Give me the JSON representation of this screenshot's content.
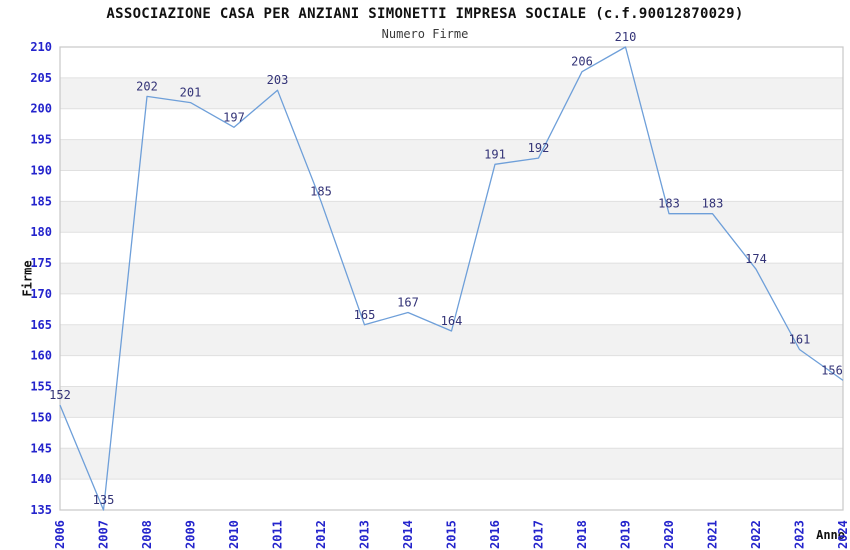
{
  "header": {
    "title": "ASSOCIAZIONE CASA PER ANZIANI SIMONETTI IMPRESA SOCIALE (c.f.90012870029)",
    "subtitle": "Numero Firme"
  },
  "chart_data": {
    "type": "line",
    "title": "ASSOCIAZIONE CASA PER ANZIANI SIMONETTI IMPRESA SOCIALE (c.f.90012870029)",
    "subtitle": "Numero Firme",
    "xlabel": "Anno",
    "ylabel": "Firme",
    "x": [
      2006,
      2007,
      2008,
      2009,
      2010,
      2011,
      2012,
      2013,
      2014,
      2015,
      2016,
      2017,
      2018,
      2019,
      2020,
      2021,
      2022,
      2023,
      2024
    ],
    "series": [
      {
        "name": "Numero Firme",
        "values": [
          152,
          135,
          202,
          201,
          197,
          203,
          185,
          165,
          167,
          164,
          191,
          192,
          206,
          210,
          183,
          183,
          174,
          161,
          156
        ]
      }
    ],
    "ylim": [
      135,
      210
    ],
    "ytick_step": 5,
    "yticks": [
      135,
      140,
      145,
      150,
      155,
      160,
      165,
      170,
      175,
      180,
      185,
      190,
      195,
      200,
      205,
      210
    ],
    "grid": true,
    "legend": false,
    "show_point_labels": true,
    "colors": {
      "line": "#6e9fd9",
      "tick_label": "#2424cc",
      "point_label": "#333377",
      "band_light": "#ffffff",
      "band_dark": "#f2f2f2",
      "gridline": "#e0e0e0",
      "plot_border": "#c8c8c8",
      "title": "#111111",
      "subtitle": "#3a3a3a"
    }
  }
}
